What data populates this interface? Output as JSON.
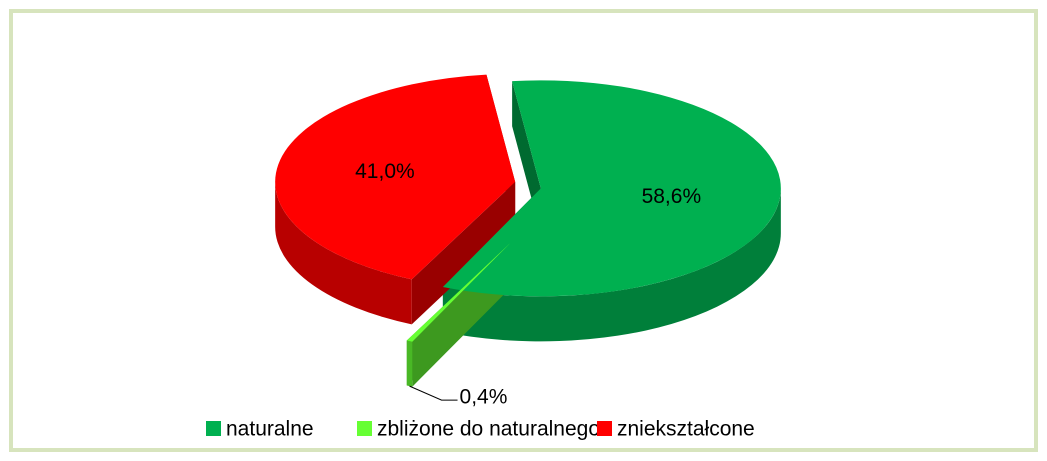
{
  "chart_data": {
    "type": "pie",
    "categories": [
      "naturalne",
      "zbliżone do naturalnego",
      "zniekształcone"
    ],
    "values": [
      58.6,
      0.4,
      41.0
    ],
    "value_labels": [
      "58,6%",
      "0,4%",
      "41,0%"
    ],
    "colors": [
      "#00b050",
      "#66ff33",
      "#ff0000"
    ],
    "legend": "bottom"
  }
}
